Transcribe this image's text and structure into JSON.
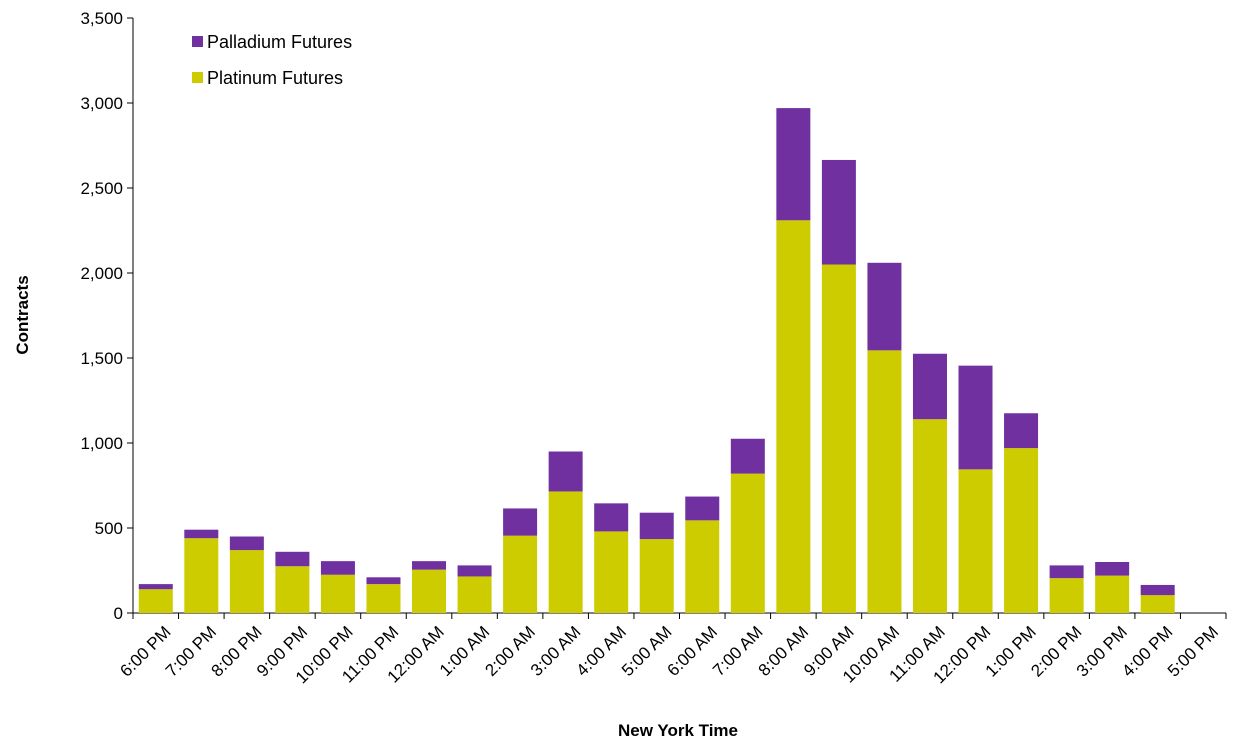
{
  "chart_data": {
    "type": "bar",
    "stacked": true,
    "xlabel": "New York Time",
    "ylabel": "Contracts",
    "ylim": [
      0,
      3500
    ],
    "yticks": [
      0,
      500,
      1000,
      1500,
      2000,
      2500,
      3000,
      3500
    ],
    "ytick_labels": [
      "0",
      "500",
      "1,000",
      "1,500",
      "2,000",
      "2,500",
      "3,000",
      "3,500"
    ],
    "grid": false,
    "legend_position": "top-left",
    "categories": [
      "6:00 PM",
      "7:00 PM",
      "8:00 PM",
      "9:00 PM",
      "10:00 PM",
      "11:00 PM",
      "12:00 AM",
      "1:00 AM",
      "2:00 AM",
      "3:00 AM",
      "4:00 AM",
      "5:00 AM",
      "6:00 AM",
      "7:00 AM",
      "8:00 AM",
      "9:00 AM",
      "10:00 AM",
      "11:00 AM",
      "12:00 PM",
      "1:00 PM",
      "2:00 PM",
      "3:00 PM",
      "4:00 PM",
      "5:00 PM"
    ],
    "series": [
      {
        "name": "Platinum Futures",
        "color": "#cccc00",
        "values": [
          140,
          440,
          370,
          275,
          225,
          170,
          255,
          215,
          455,
          715,
          480,
          435,
          545,
          820,
          2310,
          2050,
          1545,
          1140,
          845,
          970,
          205,
          220,
          105,
          0
        ]
      },
      {
        "name": "Palladium Futures",
        "color": "#7030a0",
        "values": [
          30,
          50,
          80,
          85,
          80,
          40,
          50,
          65,
          160,
          235,
          165,
          155,
          140,
          205,
          660,
          615,
          515,
          385,
          610,
          205,
          75,
          80,
          60,
          0
        ]
      }
    ],
    "legend": [
      {
        "name": "Palladium Futures",
        "color": "#7030a0"
      },
      {
        "name": "Platinum Futures",
        "color": "#cccc00"
      }
    ]
  }
}
